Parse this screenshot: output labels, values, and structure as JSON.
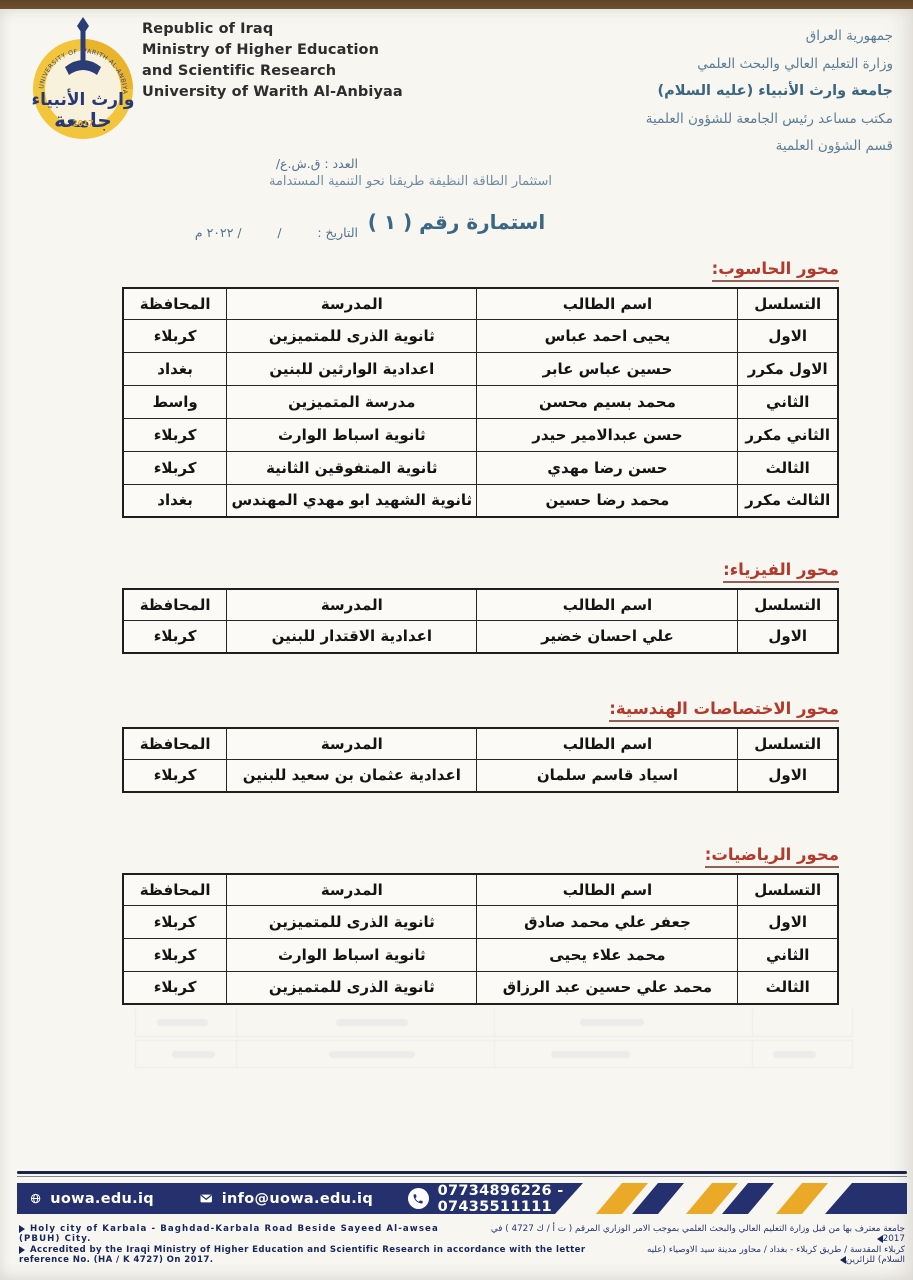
{
  "colors": {
    "accent_red": "#b5392b",
    "header_blue": "#5b7d95",
    "title_blue": "#3a6884",
    "footer_navy": "#25306e",
    "stripe_yellow": "#eaa926",
    "logo_gold": "#f2c53a",
    "paper": "#f7f6f1"
  },
  "header": {
    "english_lines": [
      "Republic of Iraq",
      "Ministry of Higher Education",
      "and Scientific Research",
      "University of Warith Al-Anbiyaa"
    ],
    "number_line": "العدد : ق.ش.ع/",
    "date_line": "التاريخ :         /         / ٢٠٢٢ م",
    "arabic_lines": [
      "جمهورية العراق",
      "وزارة التعليم العالي والبحث العلمي",
      "جامعة وارث الأنبياء (عليه السلام)",
      "مكتب مساعد رئيس الجامعة للشؤون العلمية",
      "قسم الشؤون العلمية"
    ]
  },
  "logo": {
    "arc_text": "UNIVERSITY OF WARITH AL-ANBIYAA",
    "name_calligraphy": "وارث الأنبياء",
    "word_university": "جامعة",
    "year": "2017"
  },
  "motto": "استثمار الطاقة النظيفة طريقنا نحو التنمية المستدامة",
  "form_title": "استمارة رقم ( ١ )",
  "table_columns": [
    "التسلسل",
    "اسم الطالب",
    "المدرسة",
    "المحافظة"
  ],
  "sections": [
    {
      "title": "محور الحاسوب:",
      "rows": [
        [
          "الاول",
          "يحيى احمد عباس",
          "ثانوية الذرى للمتميزين",
          "كربلاء"
        ],
        [
          "الاول مكرر",
          "حسين عباس عابر",
          "اعدادية الوارثين للبنين",
          "بغداد"
        ],
        [
          "الثاني",
          "محمد بسيم محسن",
          "مدرسة المتميزين",
          "واسط"
        ],
        [
          "الثاني مكرر",
          "حسن عبدالامير حيدر",
          "ثانوية اسباط الوارث",
          "كربلاء"
        ],
        [
          "الثالث",
          "حسن رضا مهدي",
          "ثانوية المتفوقين الثانية",
          "كربلاء"
        ],
        [
          "الثالث مكرر",
          "محمد رضا حسين",
          "ثانوية الشهيد ابو مهدي المهندس",
          "بغداد"
        ]
      ]
    },
    {
      "title": "محور الفيزياء:",
      "rows": [
        [
          "الاول",
          "علي احسان خضير",
          "اعدادية الاقتدار للبنين",
          "كربلاء"
        ]
      ]
    },
    {
      "title": "محور الاختصاصات الهندسية:",
      "rows": [
        [
          "الاول",
          "اسياد قاسم سلمان",
          "اعدادية عثمان بن سعيد للبنين",
          "كربلاء"
        ]
      ]
    },
    {
      "title": "محور الرياضيات:",
      "rows": [
        [
          "الاول",
          "جعفر علي محمد صادق",
          "ثانوية الذرى للمتميزين",
          "كربلاء"
        ],
        [
          "الثاني",
          "محمد علاء يحيى",
          "ثانوية اسباط الوارث",
          "كربلاء"
        ],
        [
          "الثالث",
          "محمد علي حسين عبد الرزاق",
          "ثانوية الذرى للمتميزين",
          "كربلاء"
        ]
      ]
    }
  ],
  "footer": {
    "website": "uowa.edu.iq",
    "email": "info@uowa.edu.iq",
    "phones": "07734896226  -  07435511111",
    "line1_en": "Holy city of  Karbala - Baghdad-Karbala Road Beside Sayeed Al-awsea (PBUH) City.",
    "line1_ar": "جامعة معترف بها من قبل وزارة التعليم العالي والبحث العلمي بموجب الامر الوزاري المرقم ( ت أ / ك 4727 ) في 2017",
    "line2_en": "Accredited by the Iraqi Ministry of Higher Education and Scientific Research in accordance with the letter reference No. (HA / K 4727) On 2017.",
    "line2_ar": "كربلاء المقدسة / طريق كربلاء - بغداد / محاور مدينة سيد الاوصياء (عليه السلام) للزائرين"
  }
}
